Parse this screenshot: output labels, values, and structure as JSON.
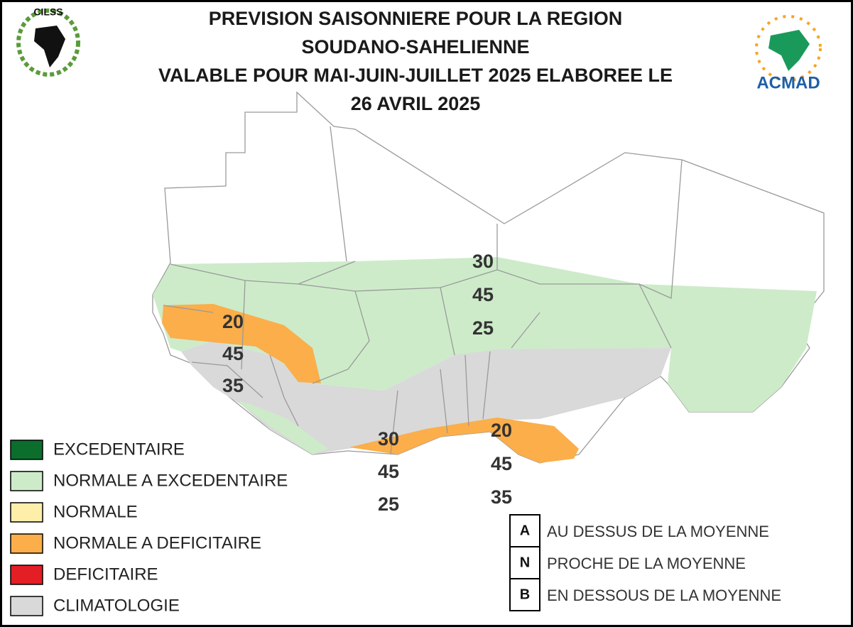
{
  "header": {
    "title_lines": [
      "PREVISION SAISONNIERE POUR LA REGION",
      "SOUDANO-SAHELIENNE",
      "VALABLE POUR MAI-JUIN-JUILLET 2025 ELABOREE LE",
      "26 AVRIL 2025"
    ],
    "logos": [
      "CILSS",
      "ACMAD"
    ]
  },
  "legend": {
    "items": [
      {
        "label": "EXCEDENTAIRE",
        "color": "#0b6e2c"
      },
      {
        "label": "NORMALE A EXCEDENTAIRE",
        "color": "#cdebc9"
      },
      {
        "label": "NORMALE",
        "color": "#fdeeaa"
      },
      {
        "label": "NORMALE A DEFICITAIRE",
        "color": "#fbae4a"
      },
      {
        "label": "DEFICITAIRE",
        "color": "#e31e24"
      },
      {
        "label": "CLIMATOLOGIE",
        "color": "#d9d9d9"
      }
    ]
  },
  "forecasts": [
    {
      "above": 20,
      "normal": 45,
      "below": 35
    },
    {
      "above": 30,
      "normal": 45,
      "below": 25
    },
    {
      "above": 30,
      "normal": 45,
      "below": 25
    },
    {
      "above": 20,
      "normal": 45,
      "below": 35
    }
  ],
  "tercile_key": [
    {
      "letter": "A",
      "label": "AU DESSUS DE LA MOYENNE"
    },
    {
      "letter": "N",
      "label": "PROCHE DE LA MOYENNE"
    },
    {
      "letter": "B",
      "label": "EN DESSOUS DE LA MOYENNE"
    }
  ]
}
